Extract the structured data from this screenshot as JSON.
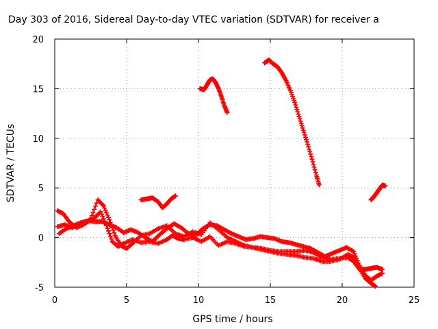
{
  "chart_data": {
    "type": "scatter",
    "title": "Day 303 of 2016, Sidereal Day-to-day VTEC variation (SDTVAR) for receiver a",
    "xlabel": "GPS time / hours",
    "ylabel": "SDTVAR / TECUs",
    "xlim": [
      0,
      25
    ],
    "ylim": [
      -5,
      20
    ],
    "xticks": [
      0,
      5,
      10,
      15,
      20,
      25
    ],
    "yticks": [
      -5,
      0,
      5,
      10,
      15,
      20
    ],
    "grid": true,
    "marker": "+",
    "color": "#ff0000",
    "series": [
      {
        "values": [
          [
            0.2,
            2.7
          ],
          [
            0.6,
            2.4
          ],
          [
            1.0,
            1.6
          ],
          [
            1.5,
            1.0
          ],
          [
            2.0,
            1.3
          ],
          [
            2.5,
            1.9
          ],
          [
            3.0,
            3.8
          ],
          [
            3.4,
            3.2
          ],
          [
            3.8,
            1.8
          ],
          [
            4.2,
            0.2
          ],
          [
            4.6,
            -0.8
          ],
          [
            5.0,
            -1.1
          ],
          [
            5.4,
            -0.6
          ],
          [
            6.0,
            0.2
          ],
          [
            6.6,
            0.4
          ],
          [
            7.2,
            0.9
          ],
          [
            7.8,
            1.2
          ],
          [
            8.4,
            0.4
          ],
          [
            9.0,
            0.1
          ],
          [
            9.6,
            0.6
          ],
          [
            10.2,
            0.3
          ],
          [
            10.8,
            1.5
          ],
          [
            11.4,
            0.8
          ],
          [
            12.0,
            0.0
          ],
          [
            12.6,
            -0.4
          ],
          [
            13.2,
            -0.8
          ],
          [
            13.8,
            -1.0
          ],
          [
            14.4,
            -1.1
          ],
          [
            15.0,
            -1.3
          ],
          [
            15.6,
            -1.4
          ],
          [
            16.2,
            -1.4
          ],
          [
            16.8,
            -1.4
          ],
          [
            17.4,
            -1.3
          ],
          [
            18.0,
            -1.5
          ],
          [
            18.6,
            -2.0
          ],
          [
            19.2,
            -2.2
          ],
          [
            19.8,
            -2.1
          ],
          [
            20.4,
            -2.0
          ],
          [
            20.8,
            -2.4
          ],
          [
            21.2,
            -3.2
          ],
          [
            21.6,
            -3.2
          ],
          [
            22.0,
            -3.1
          ],
          [
            22.4,
            -3.0
          ],
          [
            22.8,
            -3.2
          ]
        ]
      },
      {
        "values": [
          [
            0.3,
            0.4
          ],
          [
            0.8,
            0.9
          ],
          [
            1.3,
            1.2
          ],
          [
            1.8,
            1.5
          ],
          [
            2.3,
            1.7
          ],
          [
            2.8,
            1.6
          ],
          [
            3.3,
            1.6
          ],
          [
            3.8,
            1.3
          ],
          [
            4.3,
            1.0
          ],
          [
            4.8,
            0.5
          ],
          [
            5.3,
            0.8
          ],
          [
            5.8,
            0.5
          ],
          [
            6.3,
            0.0
          ],
          [
            6.8,
            -0.4
          ],
          [
            7.3,
            0.3
          ],
          [
            7.8,
            0.9
          ],
          [
            8.3,
            1.4
          ],
          [
            8.8,
            1.0
          ],
          [
            9.3,
            0.4
          ],
          [
            9.8,
            0.2
          ],
          [
            10.3,
            0.9
          ],
          [
            10.8,
            1.3
          ],
          [
            11.3,
            1.2
          ],
          [
            11.8,
            0.8
          ],
          [
            12.3,
            0.4
          ],
          [
            12.8,
            0.1
          ],
          [
            13.3,
            -0.2
          ],
          [
            13.8,
            -0.1
          ],
          [
            14.3,
            0.1
          ],
          [
            14.8,
            0.0
          ],
          [
            15.3,
            -0.1
          ],
          [
            15.8,
            -0.4
          ],
          [
            16.3,
            -0.5
          ],
          [
            16.8,
            -0.7
          ],
          [
            17.3,
            -0.9
          ],
          [
            17.8,
            -1.1
          ],
          [
            18.3,
            -1.5
          ],
          [
            18.8,
            -1.9
          ],
          [
            19.3,
            -1.6
          ],
          [
            19.8,
            -1.3
          ],
          [
            20.3,
            -1.0
          ],
          [
            20.8,
            -1.4
          ],
          [
            21.2,
            -2.8
          ],
          [
            21.6,
            -3.8
          ],
          [
            22.0,
            -4.3
          ],
          [
            22.4,
            -3.9
          ],
          [
            22.8,
            -3.6
          ]
        ]
      },
      {
        "values": [
          [
            0.2,
            1.1
          ],
          [
            0.7,
            1.3
          ],
          [
            1.2,
            1.0
          ],
          [
            1.7,
            1.3
          ],
          [
            2.2,
            1.5
          ],
          [
            2.7,
            1.9
          ],
          [
            3.2,
            2.6
          ],
          [
            3.6,
            1.2
          ],
          [
            4.0,
            -0.4
          ],
          [
            4.4,
            -0.9
          ],
          [
            4.8,
            -0.6
          ],
          [
            5.4,
            -0.2
          ],
          [
            6.0,
            -0.5
          ],
          [
            6.6,
            -0.4
          ],
          [
            7.2,
            -0.6
          ],
          [
            7.8,
            -0.2
          ],
          [
            8.2,
            0.2
          ],
          [
            8.6,
            -0.1
          ],
          [
            9.0,
            -0.2
          ],
          [
            9.6,
            0.0
          ],
          [
            10.2,
            -0.4
          ],
          [
            10.8,
            0.1
          ],
          [
            11.4,
            -0.8
          ],
          [
            12.0,
            -0.4
          ],
          [
            12.6,
            -0.6
          ],
          [
            13.2,
            -0.9
          ],
          [
            13.8,
            -1.0
          ],
          [
            14.4,
            -1.2
          ],
          [
            15.0,
            -1.4
          ],
          [
            15.6,
            -1.6
          ],
          [
            16.2,
            -1.7
          ],
          [
            16.8,
            -1.8
          ],
          [
            17.4,
            -2.0
          ],
          [
            18.0,
            -2.1
          ],
          [
            18.6,
            -2.4
          ],
          [
            19.2,
            -2.4
          ],
          [
            19.8,
            -2.2
          ],
          [
            20.4,
            -1.7
          ],
          [
            20.8,
            -2.0
          ],
          [
            21.2,
            -3.1
          ],
          [
            21.6,
            -4.1
          ],
          [
            22.0,
            -4.6
          ],
          [
            22.3,
            -4.9
          ]
        ]
      },
      {
        "values": [
          [
            6.0,
            3.8
          ],
          [
            6.4,
            3.9
          ],
          [
            6.8,
            4.0
          ],
          [
            7.2,
            3.6
          ],
          [
            7.5,
            3.0
          ],
          [
            7.8,
            3.4
          ],
          [
            8.1,
            3.9
          ],
          [
            8.4,
            4.2
          ]
        ]
      },
      {
        "values": [
          [
            10.1,
            15.0
          ],
          [
            10.4,
            14.9
          ],
          [
            10.6,
            15.4
          ],
          [
            10.8,
            15.9
          ],
          [
            11.0,
            16.0
          ],
          [
            11.2,
            15.6
          ],
          [
            11.4,
            15.0
          ],
          [
            11.6,
            14.2
          ],
          [
            11.8,
            13.3
          ],
          [
            12.0,
            12.6
          ]
        ]
      },
      {
        "values": [
          [
            14.6,
            17.6
          ],
          [
            14.9,
            17.9
          ],
          [
            15.2,
            17.5
          ],
          [
            15.5,
            17.2
          ],
          [
            15.8,
            16.6
          ],
          [
            16.1,
            15.8
          ],
          [
            16.4,
            14.8
          ],
          [
            16.7,
            13.6
          ],
          [
            17.0,
            12.2
          ],
          [
            17.3,
            10.8
          ],
          [
            17.6,
            9.4
          ],
          [
            17.9,
            7.9
          ],
          [
            18.2,
            6.3
          ],
          [
            18.4,
            5.3
          ]
        ]
      },
      {
        "values": [
          [
            22.0,
            3.8
          ],
          [
            22.2,
            4.1
          ],
          [
            22.4,
            4.5
          ],
          [
            22.6,
            4.9
          ],
          [
            22.8,
            5.3
          ],
          [
            23.0,
            5.2
          ]
        ]
      }
    ]
  }
}
